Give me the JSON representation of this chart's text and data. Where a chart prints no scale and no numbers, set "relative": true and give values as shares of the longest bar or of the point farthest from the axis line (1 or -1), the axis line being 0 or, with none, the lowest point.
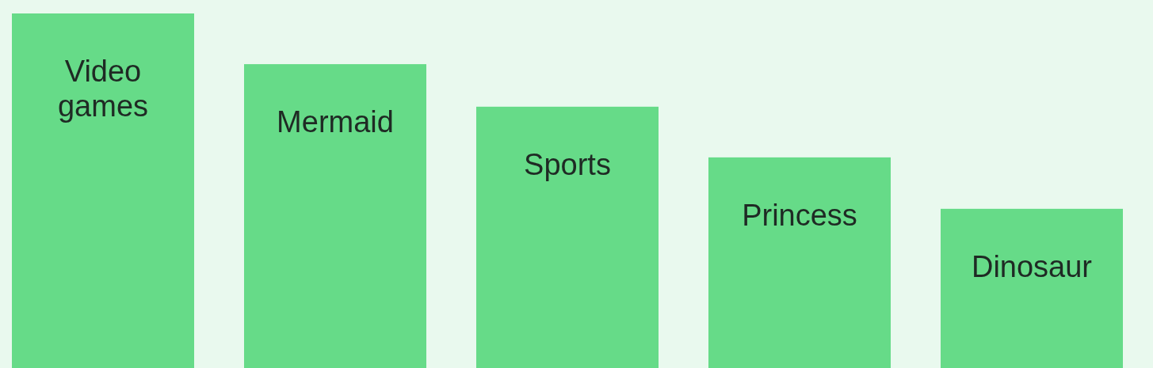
{
  "chart_data": {
    "type": "bar",
    "relative": true,
    "categories": [
      "Video games",
      "Mermaid",
      "Sports",
      "Princess",
      "Dinosaur"
    ],
    "values": [
      1,
      0.857,
      0.737,
      0.594,
      0.449
    ],
    "color": "#66db88"
  }
}
